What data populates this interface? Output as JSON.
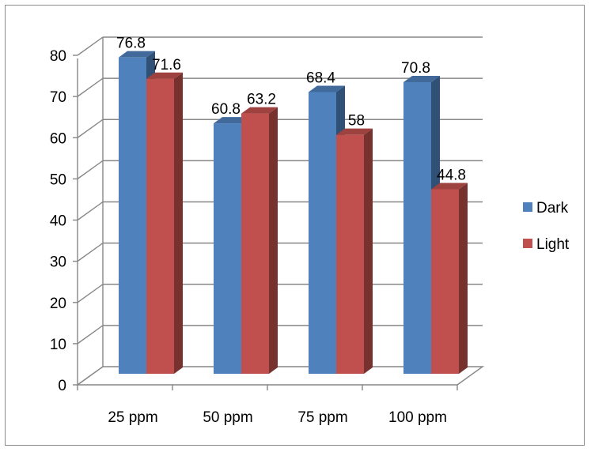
{
  "chart_data": {
    "type": "bar",
    "three_d": true,
    "categories": [
      "25 ppm",
      "50 ppm",
      "75 ppm",
      "100 ppm"
    ],
    "series": [
      {
        "name": "Dark",
        "values": [
          76.8,
          60.8,
          68.4,
          70.8
        ],
        "color": "#4F81BD"
      },
      {
        "name": "Light",
        "values": [
          71.6,
          63.2,
          58,
          44.8
        ],
        "color": "#C0504D"
      }
    ],
    "y_ticks": [
      "0",
      "10",
      "20",
      "30",
      "40",
      "50",
      "60",
      "70",
      "80"
    ],
    "data_labels": [
      [
        "76.8",
        "60.8",
        "68.4",
        "70.8"
      ],
      [
        "71.6",
        "63.2",
        "58",
        "44.8"
      ]
    ],
    "ylim": [
      0,
      80
    ],
    "grid": true,
    "legend": {
      "position": "right",
      "items": [
        "Dark",
        "Light"
      ]
    },
    "title": "",
    "xlabel": "",
    "ylabel": ""
  }
}
